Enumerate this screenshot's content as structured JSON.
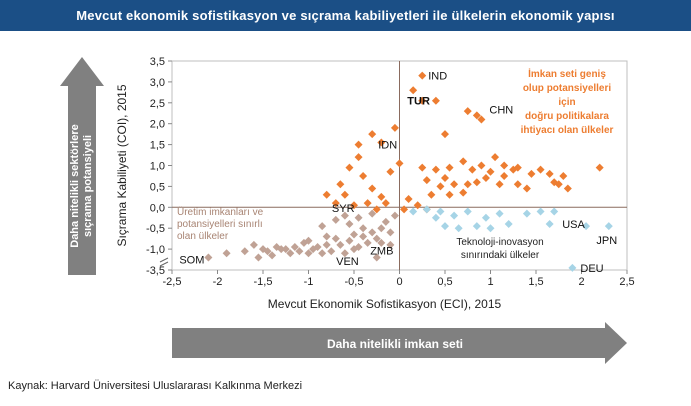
{
  "title": "Mevcut ekonomik sofistikasyon  ve sıçrama kabiliyetleri ile ülkelerin  ekonomik yapısı",
  "source": "Kaynak: Harvard Üniversitesi Uluslararası  Kalkınma Merkezi",
  "arrows": {
    "vertical": [
      "Daha nitelikli sektörlere",
      "sıçrama potansiyeli"
    ],
    "horizontal": "Daha nitelikli imkan seti"
  },
  "colors": {
    "orange": "#ed7d31",
    "taupe": "#c0a295",
    "lightblue": "#a6d4e6",
    "label_orange": "#ed7d31",
    "arrow_gray": "#808080",
    "title_bg": "#1b4f86"
  },
  "chart_data": {
    "type": "scatter",
    "xlabel": "Mevcut Ekonomik Sofistikasyon (ECI), 2015",
    "ylabel": "Sıçrama Kabiliyeti  (COI), 2015",
    "xlim": [
      -2.5,
      2.5
    ],
    "ylim": [
      -1.5,
      3.5
    ],
    "y_axis_break_label": "-3,5",
    "xticks": [
      "-2,5",
      "-2",
      "-1,5",
      "-1",
      "-0,5",
      "0",
      "0,5",
      "1",
      "1,5",
      "2",
      "2,5"
    ],
    "yticks": [
      "-1,5",
      "-1,0",
      "-0,5",
      "0,0",
      "0,5",
      "1,0",
      "1,5",
      "2,0",
      "2,5",
      "3,0",
      "3,5"
    ],
    "quadrant_labels": {
      "top_right": [
        "İmkan seti geniş",
        "olup potansiyelleri",
        "için",
        "doğru politikalara",
        "ihtiyacı olan ülkeler"
      ],
      "bottom_left": [
        "Üretim imkanları ve",
        "potansiyelleri sınırlı",
        "olan ülkeler"
      ],
      "bottom_right": [
        "Teknoloji-inovasyon",
        "sınırındaki ülkeler"
      ]
    },
    "series": [
      {
        "color": "orange",
        "points": [
          [
            0.25,
            3.15
          ],
          [
            0.15,
            2.8
          ],
          [
            0.25,
            2.55
          ],
          [
            0.4,
            2.55
          ],
          [
            0.75,
            2.3
          ],
          [
            0.9,
            2.1
          ],
          [
            0.85,
            2.2
          ],
          [
            0.5,
            1.75
          ],
          [
            -0.05,
            1.9
          ],
          [
            -0.3,
            1.75
          ],
          [
            -0.2,
            1.55
          ],
          [
            -0.45,
            1.5
          ],
          [
            -0.45,
            1.2
          ],
          [
            -0.55,
            0.95
          ],
          [
            -0.4,
            0.75
          ],
          [
            -0.1,
            0.85
          ],
          [
            0.0,
            1.05
          ],
          [
            0.25,
            0.95
          ],
          [
            0.4,
            0.9
          ],
          [
            0.55,
            0.95
          ],
          [
            0.3,
            0.65
          ],
          [
            0.5,
            0.7
          ],
          [
            0.6,
            0.55
          ],
          [
            0.45,
            0.5
          ],
          [
            0.7,
            1.1
          ],
          [
            0.8,
            0.9
          ],
          [
            0.9,
            1.0
          ],
          [
            1.0,
            0.85
          ],
          [
            0.95,
            0.7
          ],
          [
            0.75,
            0.55
          ],
          [
            0.7,
            0.35
          ],
          [
            0.55,
            0.3
          ],
          [
            0.35,
            0.3
          ],
          [
            0.1,
            0.2
          ],
          [
            1.05,
            1.2
          ],
          [
            1.15,
            1.0
          ],
          [
            1.25,
            0.9
          ],
          [
            1.15,
            0.75
          ],
          [
            1.3,
            0.55
          ],
          [
            1.45,
            0.8
          ],
          [
            1.55,
            0.9
          ],
          [
            1.65,
            0.8
          ],
          [
            1.7,
            0.6
          ],
          [
            1.8,
            0.75
          ],
          [
            1.75,
            0.55
          ],
          [
            1.85,
            0.45
          ],
          [
            2.2,
            0.95
          ],
          [
            1.3,
            0.95
          ],
          [
            -0.65,
            0.55
          ],
          [
            -0.6,
            0.3
          ],
          [
            -0.3,
            0.45
          ],
          [
            -0.2,
            0.25
          ],
          [
            -0.15,
            0.1
          ],
          [
            -0.35,
            0.1
          ],
          [
            -0.8,
            0.3
          ],
          [
            -0.7,
            0.1
          ],
          [
            -0.5,
            0.05
          ],
          [
            -0.25,
            -0.05
          ],
          [
            0.05,
            -0.05
          ],
          [
            0.2,
            0.05
          ],
          [
            0.3,
            -0.05
          ],
          [
            1.1,
            0.55
          ],
          [
            1.4,
            0.45
          ],
          [
            0.85,
            0.6
          ]
        ]
      },
      {
        "color": "taupe",
        "points": [
          [
            -2.1,
            -1.2
          ],
          [
            -1.9,
            -1.1
          ],
          [
            -1.7,
            -1.05
          ],
          [
            -1.55,
            -1.2
          ],
          [
            -1.45,
            -1.05
          ],
          [
            -1.35,
            -0.95
          ],
          [
            -1.25,
            -1.0
          ],
          [
            -1.2,
            -1.1
          ],
          [
            -1.1,
            -1.05
          ],
          [
            -1.05,
            -0.85
          ],
          [
            -0.95,
            -1.0
          ],
          [
            -0.9,
            -0.95
          ],
          [
            -0.85,
            -1.1
          ],
          [
            -0.8,
            -0.9
          ],
          [
            -1.6,
            -0.9
          ],
          [
            -1.5,
            -1.0
          ],
          [
            -1.4,
            -1.15
          ],
          [
            -1.0,
            -1.1
          ],
          [
            -0.75,
            -1.05
          ],
          [
            -0.7,
            -0.75
          ],
          [
            -0.65,
            -0.9
          ],
          [
            -0.6,
            -1.1
          ],
          [
            -0.55,
            -0.8
          ],
          [
            -0.5,
            -0.65
          ],
          [
            -0.45,
            -0.95
          ],
          [
            -0.4,
            -0.7
          ],
          [
            -0.35,
            -0.85
          ],
          [
            -0.3,
            -0.6
          ],
          [
            -0.25,
            -0.75
          ],
          [
            -0.2,
            -0.5
          ],
          [
            -0.15,
            -0.35
          ],
          [
            -0.1,
            -0.6
          ],
          [
            -0.05,
            -0.2
          ],
          [
            -0.55,
            -0.4
          ],
          [
            -0.6,
            -0.2
          ],
          [
            -0.7,
            -0.3
          ],
          [
            -0.45,
            -0.25
          ],
          [
            -0.3,
            -0.15
          ],
          [
            -0.85,
            -0.45
          ],
          [
            -1.15,
            -0.95
          ],
          [
            -1.3,
            -1.0
          ],
          [
            -0.4,
            -0.5
          ],
          [
            -0.2,
            -0.85
          ],
          [
            -0.1,
            -0.9
          ],
          [
            -0.25,
            -1.2
          ],
          [
            -0.5,
            -1.0
          ],
          [
            -0.8,
            -0.7
          ],
          [
            -1.0,
            -0.8
          ]
        ]
      },
      {
        "color": "lightblue",
        "points": [
          [
            0.45,
            -0.1
          ],
          [
            0.6,
            -0.2
          ],
          [
            0.75,
            -0.1
          ],
          [
            0.4,
            -0.25
          ],
          [
            0.95,
            -0.25
          ],
          [
            1.1,
            -0.15
          ],
          [
            0.5,
            -0.45
          ],
          [
            0.65,
            -0.5
          ],
          [
            0.85,
            -0.45
          ],
          [
            1.0,
            -0.5
          ],
          [
            1.4,
            -0.15
          ],
          [
            1.55,
            -0.1
          ],
          [
            1.7,
            -0.1
          ],
          [
            0.15,
            -0.1
          ],
          [
            0.3,
            -0.05
          ],
          [
            2.05,
            -0.45
          ],
          [
            1.65,
            -0.4
          ],
          [
            1.2,
            -0.4
          ],
          [
            2.3,
            -0.45
          ],
          [
            1.9,
            -1.45
          ]
        ]
      }
    ],
    "labeled_points": [
      {
        "name": "IND",
        "x": 0.25,
        "y": 3.15,
        "bold": false
      },
      {
        "name": "TUR",
        "x": 0.4,
        "y": 2.55,
        "bold": true
      },
      {
        "name": "CHN",
        "x": 0.9,
        "y": 2.1,
        "bold": false
      },
      {
        "name": "IDN",
        "x": -0.3,
        "y": 1.5,
        "bold": false
      },
      {
        "name": "SYR",
        "x": -0.45,
        "y": -0.25,
        "bold": false
      },
      {
        "name": "SOM",
        "x": -2.1,
        "y": -1.2,
        "bold": false
      },
      {
        "name": "VEN",
        "x": -0.55,
        "y": -1.05,
        "bold": false
      },
      {
        "name": "ZMB",
        "x": -0.3,
        "y": -0.8,
        "bold": false
      },
      {
        "name": "USA",
        "x": 1.7,
        "y": -0.4,
        "bold": false
      },
      {
        "name": "JPN",
        "x": 2.3,
        "y": -0.45,
        "bold": false
      },
      {
        "name": "DEU",
        "x": 1.9,
        "y": -1.45,
        "bold": false
      }
    ]
  }
}
